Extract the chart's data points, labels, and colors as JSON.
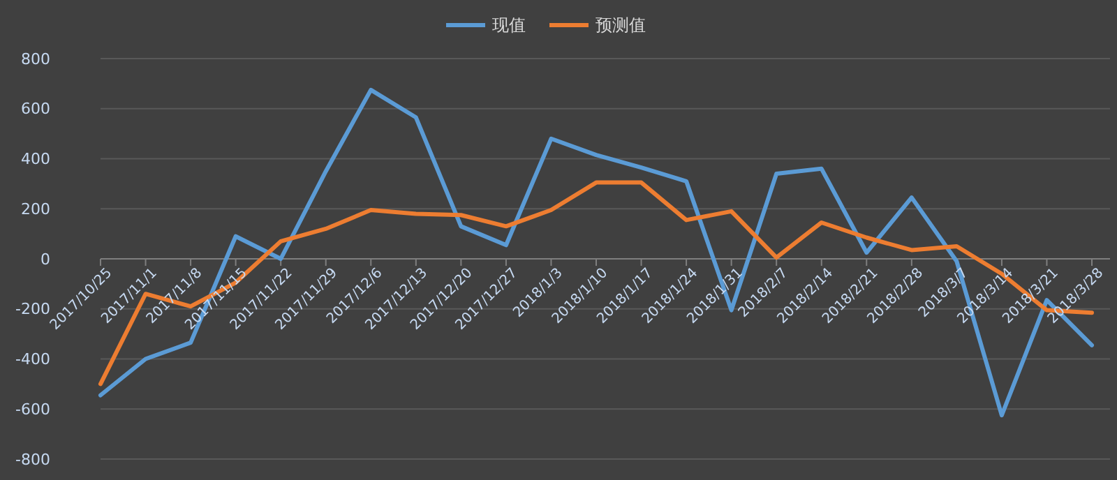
{
  "chart_data": {
    "type": "line",
    "categories": [
      "2017/10/25",
      "2017/11/1",
      "2017/11/8",
      "2017/11/15",
      "2017/11/22",
      "2017/11/29",
      "2017/12/6",
      "2017/12/13",
      "2017/12/20",
      "2017/12/27",
      "2018/1/3",
      "2018/1/10",
      "2018/1/17",
      "2018/1/24",
      "2018/1/31",
      "2018/2/7",
      "2018/2/14",
      "2018/2/21",
      "2018/2/28",
      "2018/3/7",
      "2018/3/14",
      "2018/3/21",
      "2018/3/28"
    ],
    "series": [
      {
        "name": "现值",
        "color": "#5b9bd5",
        "values": [
          -545,
          -400,
          -335,
          90,
          0,
          350,
          675,
          565,
          130,
          55,
          480,
          415,
          365,
          310,
          -205,
          340,
          360,
          25,
          245,
          -10,
          -625,
          -165,
          -345
        ]
      },
      {
        "name": "预测值",
        "color": "#ed7d31",
        "values": [
          -500,
          -140,
          -190,
          -95,
          70,
          120,
          195,
          180,
          175,
          130,
          195,
          305,
          305,
          155,
          190,
          5,
          145,
          85,
          35,
          50,
          -60,
          -205,
          -215
        ]
      }
    ],
    "ylim": [
      -800,
      800
    ],
    "yticks": [
      -800,
      -600,
      -400,
      -200,
      0,
      200,
      400,
      600,
      800
    ],
    "grid": "y",
    "legend": "top",
    "marker": "none",
    "line_style": "solid"
  }
}
